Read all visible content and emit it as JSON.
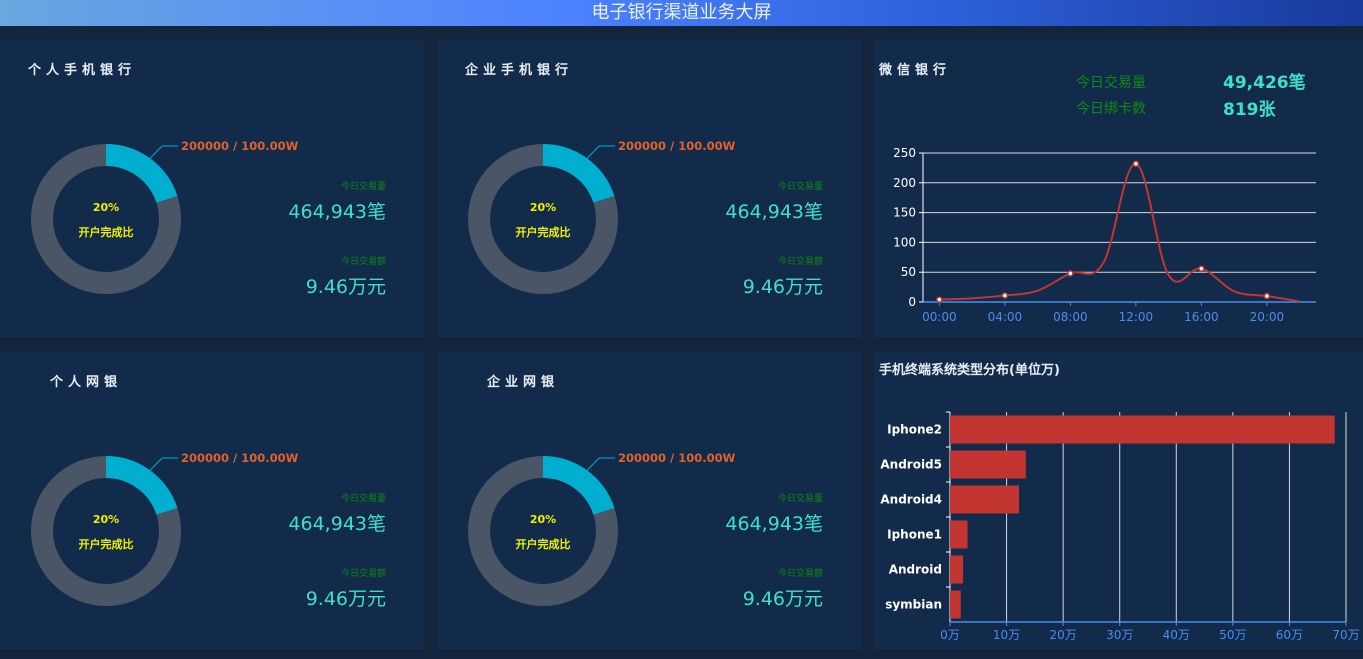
{
  "header": {
    "title": "电子银行渠道业务大屏"
  },
  "panels": [
    {
      "title": "个人手机银行",
      "label": "200000 / 100.00W",
      "percent": "20%",
      "percent_value": 20,
      "percent_label": "开户完成比",
      "count_label": "今日交易量",
      "count_value": "464,943笔",
      "amount_label": "今日交易额",
      "amount_value": "9.46万元"
    },
    {
      "title": "企业手机银行",
      "label": "200000 / 100.00W",
      "percent": "20%",
      "percent_value": 20,
      "percent_label": "开户完成比",
      "count_label": "今日交易量",
      "count_value": "464,943笔",
      "amount_label": "今日交易额",
      "amount_value": "9.46万元"
    },
    {
      "title": "个人网银",
      "label": "200000 / 100.00W",
      "percent": "20%",
      "percent_value": 20,
      "percent_label": "开户完成比",
      "count_label": "今日交易量",
      "count_value": "464,943笔",
      "amount_label": "今日交易额",
      "amount_value": "9.46万元"
    },
    {
      "title": "企业网银",
      "label": "200000 / 100.00W",
      "percent": "20%",
      "percent_value": 20,
      "percent_label": "开户完成比",
      "count_label": "今日交易量",
      "count_value": "464,943笔",
      "amount_label": "今日交易额",
      "amount_value": "9.46万元"
    }
  ],
  "colors": {
    "donut_fill": "#00aed0",
    "donut_track": "#4a5566",
    "line": "#c23531",
    "bar": "#c23531"
  },
  "wechat": {
    "title": "微信银行",
    "tx_label": "今日交易量",
    "tx_value": "49,426笔",
    "card_label": "今日绑卡数",
    "card_value": "819张"
  },
  "terminal": {
    "title": "手机终端系统类型分布(单位万)"
  },
  "chart_data": [
    {
      "type": "line",
      "smooth": true,
      "x": [
        "00:00",
        "02:00",
        "04:00",
        "06:00",
        "08:00",
        "10:00",
        "12:00",
        "14:00",
        "16:00",
        "18:00",
        "20:00",
        "22:00"
      ],
      "xticks": [
        "00:00",
        "04:00",
        "08:00",
        "12:00",
        "16:00",
        "20:00"
      ],
      "values": [
        4,
        6,
        11,
        19,
        48,
        65,
        232,
        45,
        56,
        18,
        10,
        1
      ],
      "ylim": [
        0,
        250
      ],
      "yticks": [
        0,
        50,
        100,
        150,
        200,
        250
      ],
      "grid": true
    },
    {
      "type": "bar",
      "orientation": "horizontal",
      "categories": [
        "Iphone2",
        "Android5",
        "Android4",
        "Iphone1",
        "Android",
        "symbian"
      ],
      "values": [
        68,
        13.4,
        12.2,
        3.1,
        2.3,
        1.9
      ],
      "xlim": [
        0,
        70
      ],
      "xticks": [
        "0万",
        "10万",
        "20万",
        "30万",
        "40万",
        "50万",
        "60万",
        "70万"
      ],
      "grid": true
    }
  ]
}
